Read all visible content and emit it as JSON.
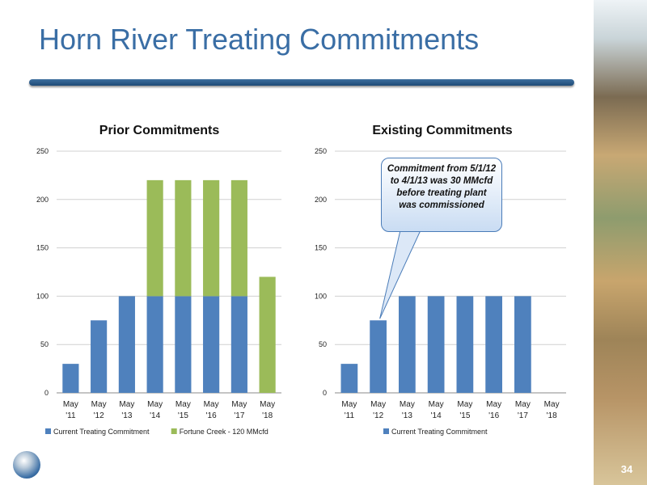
{
  "slide": {
    "title": "Horn River Treating Commitments",
    "page_number": "34"
  },
  "colors": {
    "blue": "#4f81bd",
    "green": "#9bbb59"
  },
  "chart_data": [
    {
      "type": "bar",
      "stacked": true,
      "title": "Prior Commitments",
      "categories": [
        [
          "May",
          "'11"
        ],
        [
          "May",
          "'12"
        ],
        [
          "May",
          "'13"
        ],
        [
          "May",
          "'14"
        ],
        [
          "May",
          "'15"
        ],
        [
          "May",
          "'16"
        ],
        [
          "May",
          "'17"
        ],
        [
          "May",
          "'18"
        ]
      ],
      "ylim": [
        0,
        250
      ],
      "yticks": [
        0,
        50,
        100,
        150,
        200,
        250
      ],
      "grid": true,
      "legend_position": "bottom",
      "series": [
        {
          "name": "Current Treating Commitment",
          "color": "#4f81bd",
          "values": [
            30,
            75,
            100,
            100,
            100,
            100,
            100,
            0
          ]
        },
        {
          "name": "Fortune Creek - 120 MMcfd",
          "color": "#9bbb59",
          "values": [
            0,
            0,
            0,
            120,
            120,
            120,
            120,
            120
          ]
        }
      ]
    },
    {
      "type": "bar",
      "stacked": true,
      "title": "Existing Commitments",
      "categories": [
        [
          "May",
          "'11"
        ],
        [
          "May",
          "'12"
        ],
        [
          "May",
          "'13"
        ],
        [
          "May",
          "'14"
        ],
        [
          "May",
          "'15"
        ],
        [
          "May",
          "'16"
        ],
        [
          "May",
          "'17"
        ],
        [
          "May",
          "'18"
        ]
      ],
      "ylim": [
        0,
        250
      ],
      "yticks": [
        0,
        50,
        100,
        150,
        200,
        250
      ],
      "grid": true,
      "legend_position": "bottom",
      "series": [
        {
          "name": "Current Treating Commitment",
          "color": "#4f81bd",
          "values": [
            30,
            75,
            100,
            100,
            100,
            100,
            100,
            0
          ]
        }
      ],
      "annotation": {
        "text": "Commitment from 5/1/12 to 4/1/13 was 30 MMcfd before treating plant was commissioned",
        "points_to_category_index": 1
      }
    }
  ]
}
